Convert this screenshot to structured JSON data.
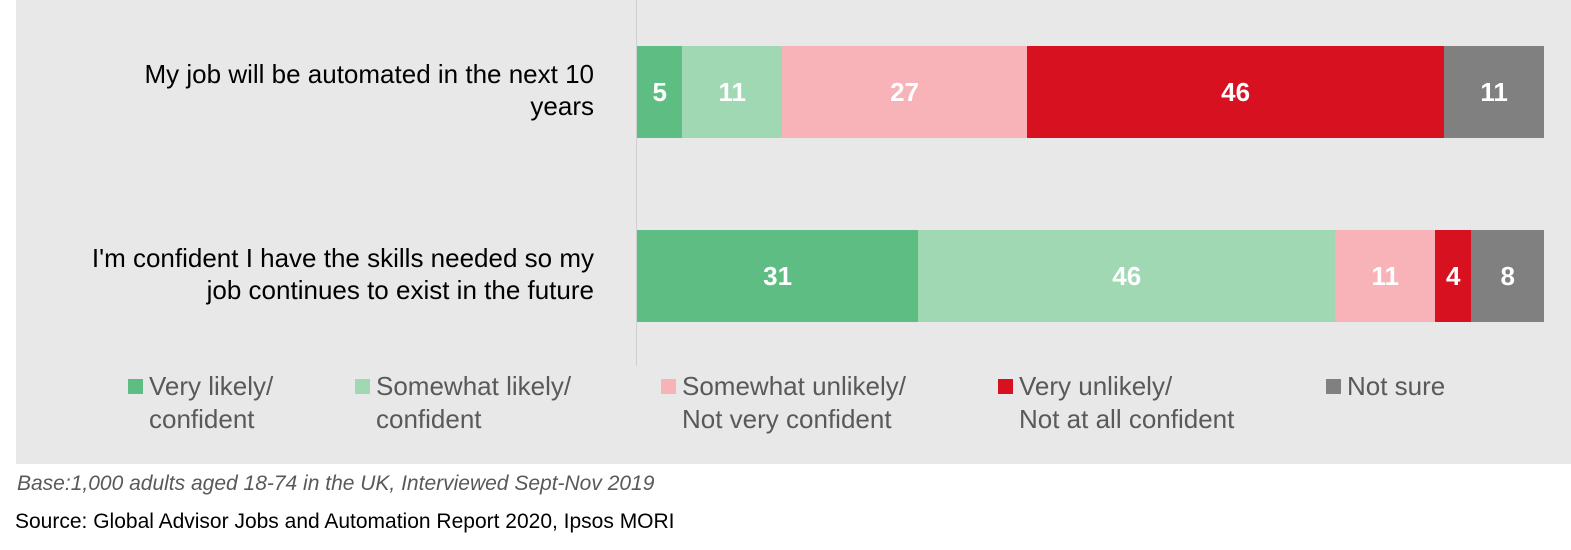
{
  "chart_data": {
    "type": "bar",
    "orientation": "horizontal",
    "stacked": true,
    "categories": [
      "My job will be automated in the next 10 years",
      "I'm confident I have the skills needed so my job continues to exist in the future"
    ],
    "category_lines": [
      [
        "My job will be automated in the next 10",
        "years"
      ],
      [
        "I'm confident I have the skills needed so my",
        "job continues to exist in the future"
      ]
    ],
    "series": [
      {
        "name": "Very likely/ confident",
        "legend_lines": [
          "Very likely/",
          "confident"
        ],
        "color": "#5dbd82",
        "values": [
          5,
          31
        ]
      },
      {
        "name": "Somewhat likely/ confident",
        "legend_lines": [
          "Somewhat likely/",
          "confident"
        ],
        "color": "#a0d8b4",
        "values": [
          11,
          46
        ]
      },
      {
        "name": "Somewhat unlikely/ Not very confident",
        "legend_lines": [
          "Somewhat unlikely/",
          "Not very confident"
        ],
        "color": "#f8b3b9",
        "values": [
          27,
          11
        ]
      },
      {
        "name": "Very unlikely/ Not at all confident",
        "legend_lines": [
          "Very unlikely/",
          "Not at all confident"
        ],
        "color": "#d7111f",
        "values": [
          46,
          4
        ]
      },
      {
        "name": "Not sure",
        "legend_lines": [
          "Not sure",
          ""
        ],
        "color": "#808080",
        "values": [
          11,
          8
        ]
      }
    ],
    "xlim": [
      0,
      100
    ],
    "legend_position": "bottom",
    "grid": false
  },
  "footnotes": {
    "base": "Base:1,000 adults aged 18-74 in the UK, Interviewed Sept-Nov 2019",
    "source": "Source: Global Advisor Jobs and Automation Report 2020, Ipsos MORI"
  }
}
